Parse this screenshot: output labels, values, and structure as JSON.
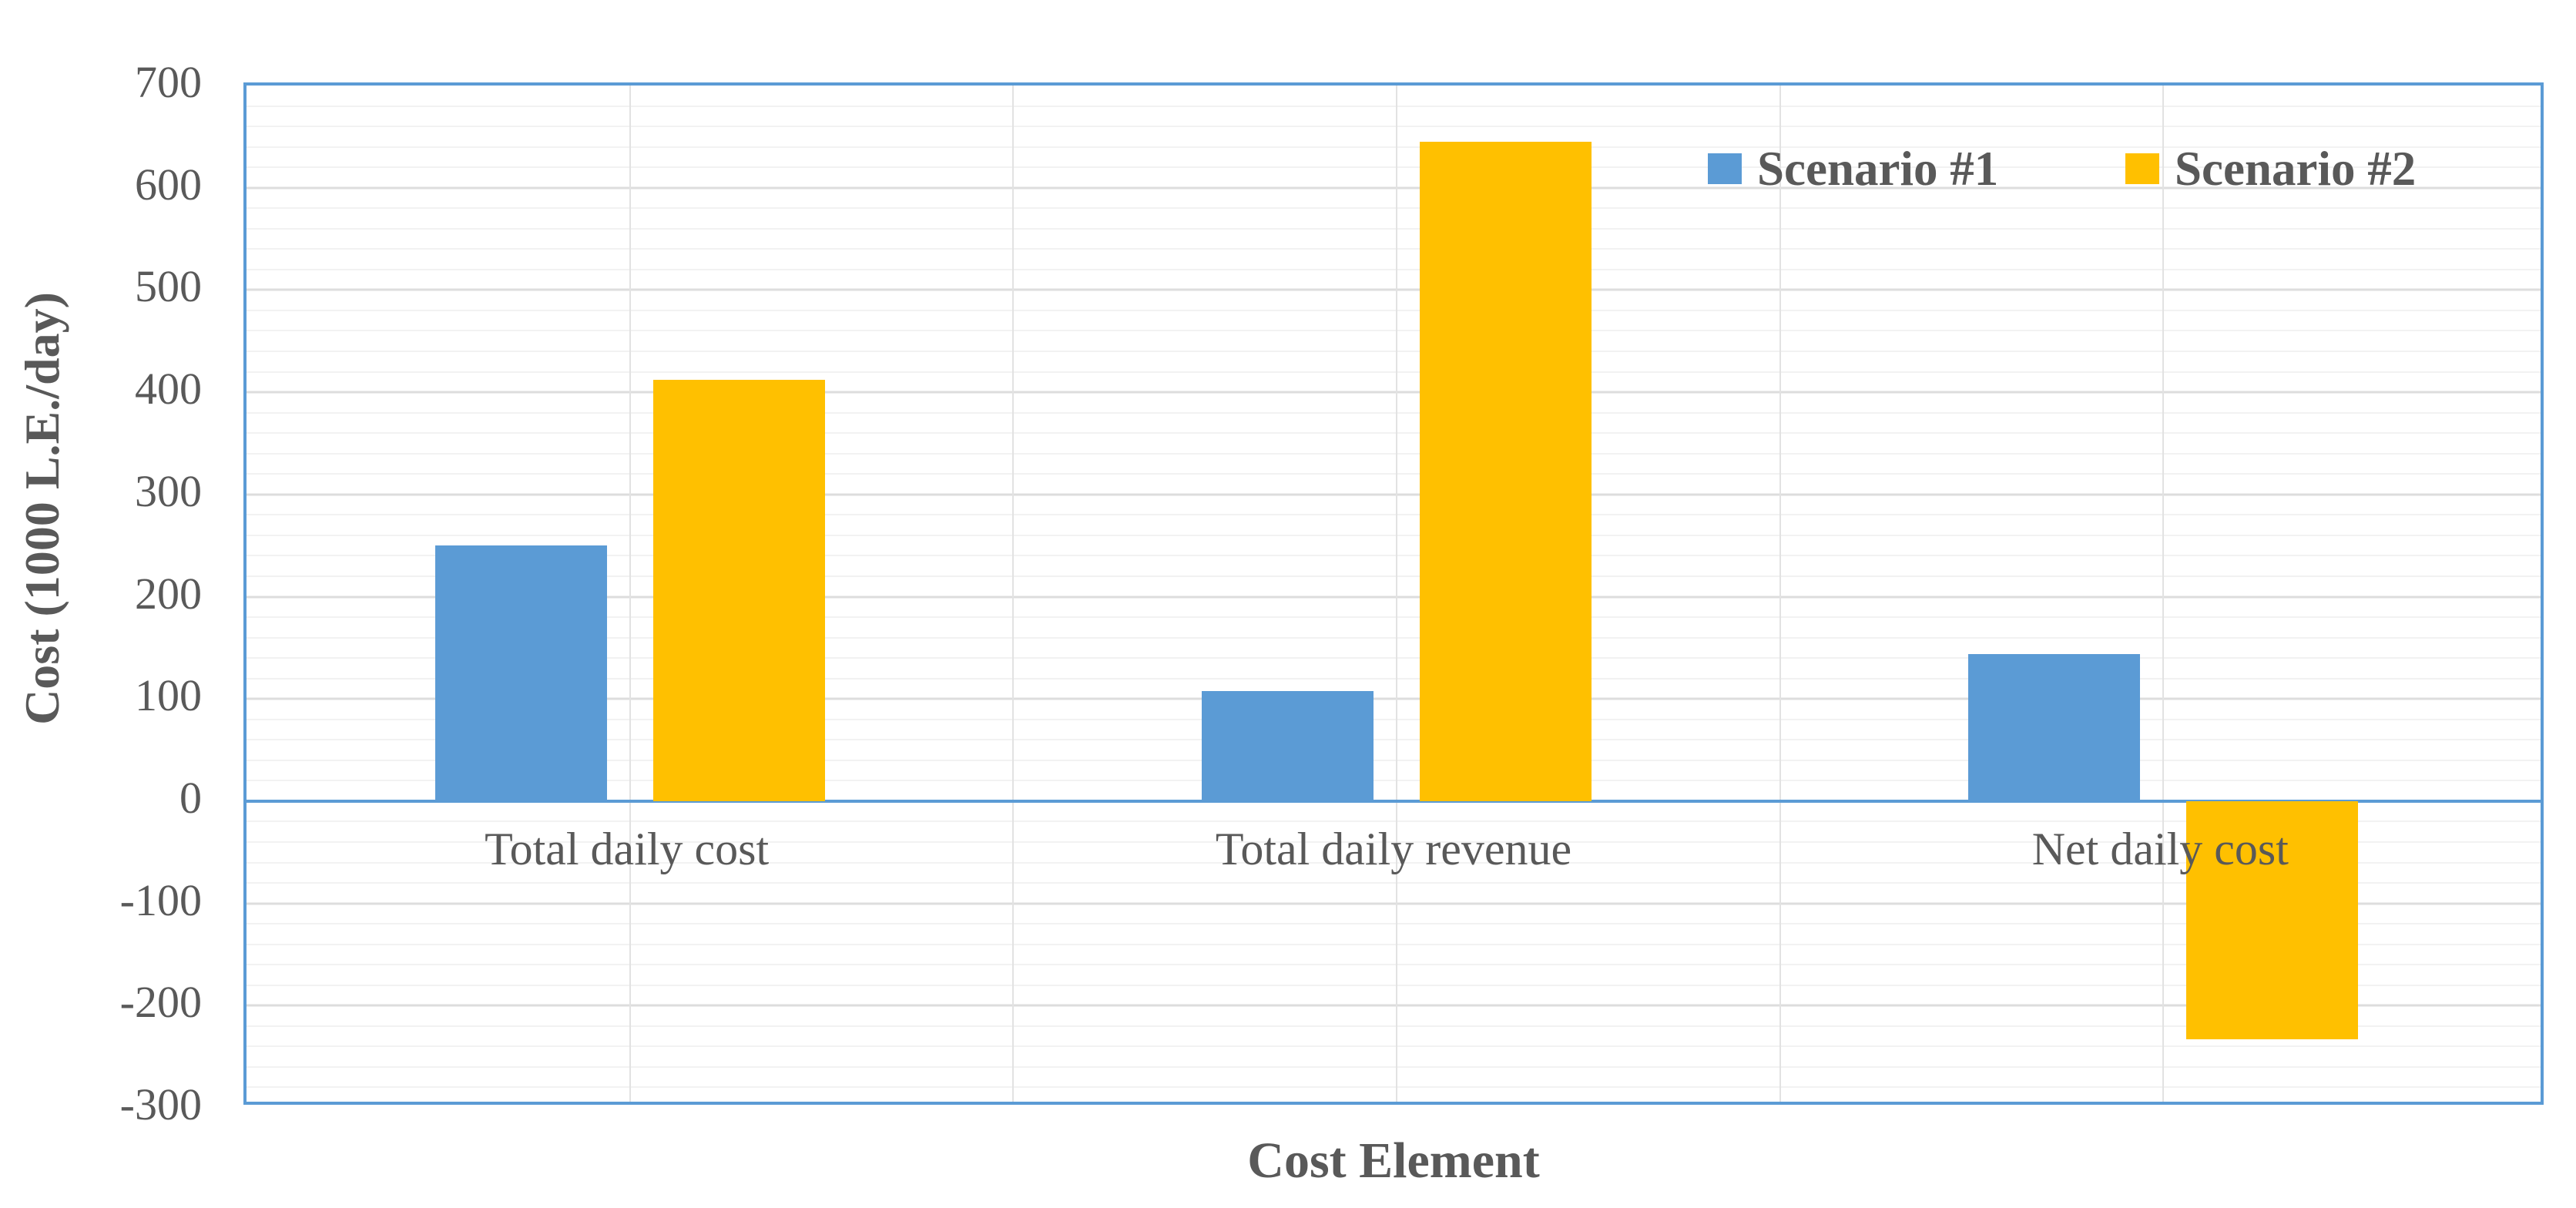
{
  "chart_data": {
    "type": "bar",
    "categories": [
      "Total daily cost",
      "Total daily revenue",
      "Net daily cost"
    ],
    "series": [
      {
        "name": "Scenario #1",
        "color": "#5B9BD5",
        "values": [
          250,
          108,
          144
        ]
      },
      {
        "name": "Scenario #2",
        "color": "#FFC000",
        "values": [
          412,
          645,
          -233
        ]
      }
    ],
    "xlabel": "Cost Element",
    "ylabel": "Cost (1000 L.E./day)",
    "ylim": [
      -300,
      700
    ],
    "y_major_unit": 100,
    "y_minor_unit": 20,
    "y_ticks": [
      "700",
      "600",
      "500",
      "400",
      "300",
      "200",
      "100",
      "0",
      "-100",
      "-200",
      "-300"
    ],
    "legend_position": "top-right-inside",
    "grid": {
      "horizontal_major": true,
      "horizontal_minor": true,
      "vertical_category": true
    }
  },
  "styles": {
    "bar_blue": "#5B9BD5",
    "bar_gold": "#FFC000",
    "plot_border_color": "#5B9BD5",
    "zero_axis_color": "#5B9BD5",
    "text_color": "#595959",
    "grid_minor_color": "#F2F2F2",
    "grid_major_color": "#DDDDDD",
    "grid_vertical_color": "#E2E2E2",
    "background": "#FFFFFF"
  }
}
